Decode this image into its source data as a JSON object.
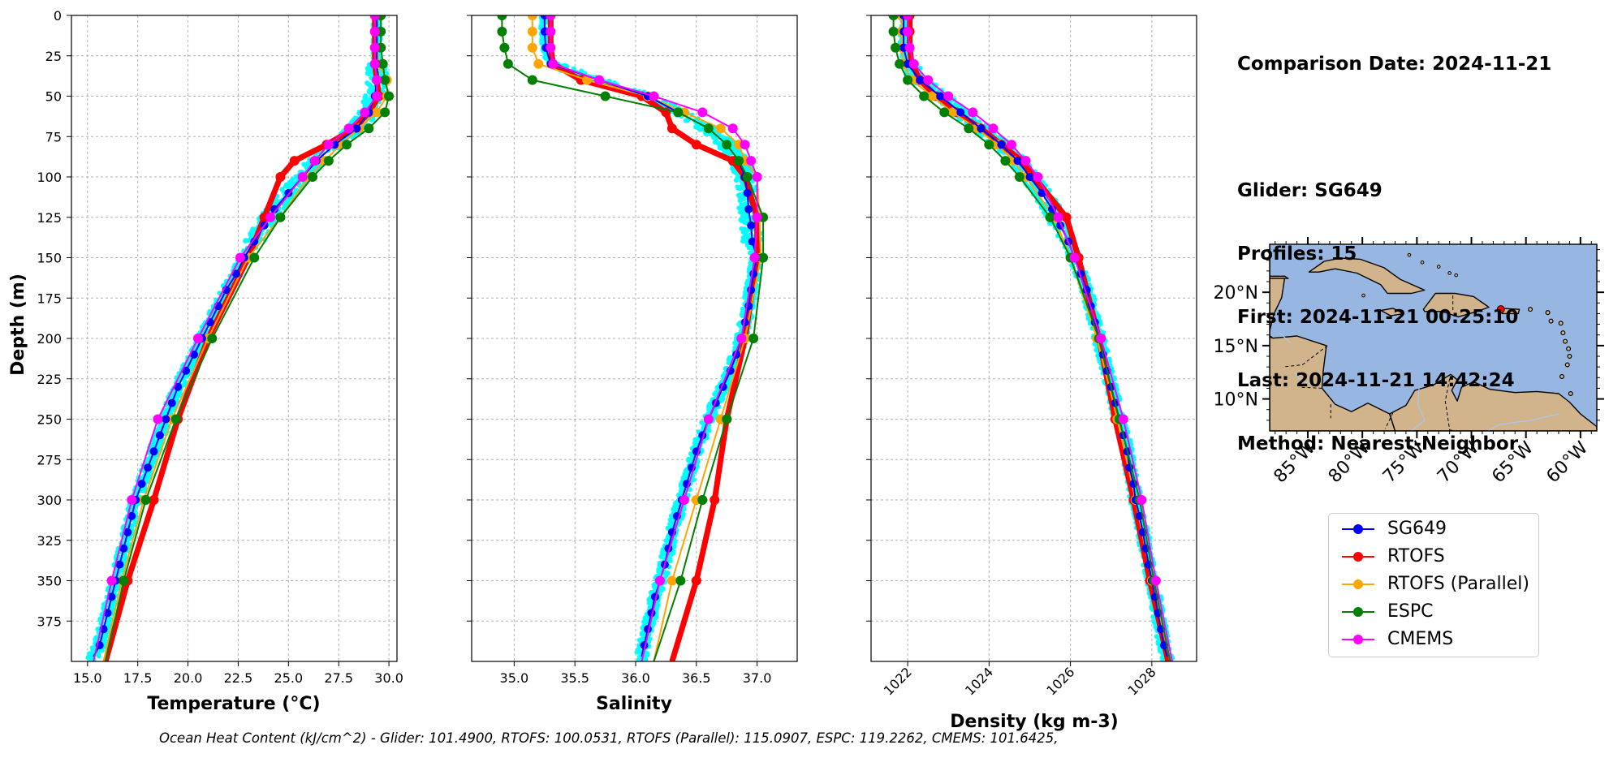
{
  "info": {
    "comparison_date": "Comparison Date: 2024-11-21",
    "glider": "Glider: SG649",
    "profiles": "Profiles: 15",
    "first": "First: 2024-11-21 00:25:10",
    "last": "Last: 2024-11-21 14:42:24",
    "method": "Method: Nearest-Neighbor"
  },
  "footer": "Ocean Heat Content (kJ/cm^2) - Glider: 101.4900,  RTOFS: 100.0531,  RTOFS (Parallel): 115.0907,  ESPC: 119.2262,  CMEMS: 101.6425,",
  "colors": {
    "glider": "#0000ff",
    "rtofs": "#ff0000",
    "rtofs_parallel": "#ffa500",
    "espc": "#008000",
    "cmems": "#ff00ff",
    "glider_raw": "#00ffff",
    "ocean": "#97b6e1",
    "land": "#d2b48c"
  },
  "legend": [
    {
      "label": "SG649",
      "color": "#0000ff"
    },
    {
      "label": "RTOFS",
      "color": "#ff0000"
    },
    {
      "label": "RTOFS (Parallel)",
      "color": "#ffa500"
    },
    {
      "label": "ESPC",
      "color": "#008000"
    },
    {
      "label": "CMEMS",
      "color": "#ff00ff"
    }
  ],
  "chart_data": [
    {
      "type": "line",
      "xlabel": "Temperature (°C)",
      "ylabel": "Depth (m)",
      "xlim": [
        14.2,
        30.4
      ],
      "ylim": [
        400,
        0
      ],
      "xticks": [
        15.0,
        17.5,
        20.0,
        22.5,
        25.0,
        27.5,
        30.0
      ],
      "xtick_labels": [
        "15.0",
        "17.5",
        "20.0",
        "22.5",
        "25.0",
        "27.5",
        "30.0"
      ],
      "yticks": [
        0,
        25,
        50,
        75,
        100,
        125,
        150,
        175,
        200,
        225,
        250,
        275,
        300,
        325,
        350,
        375
      ],
      "grid": true,
      "series": [
        {
          "name": "SG649",
          "depth": [
            0,
            10,
            20,
            30,
            40,
            50,
            60,
            70,
            80,
            90,
            100,
            110,
            120,
            130,
            140,
            150,
            160,
            170,
            180,
            190,
            200,
            210,
            220,
            230,
            240,
            250,
            260,
            270,
            280,
            290,
            300,
            310,
            320,
            330,
            340,
            350,
            360,
            370,
            380,
            390,
            397
          ],
          "values": [
            29.4,
            29.4,
            29.4,
            29.4,
            29.4,
            29.3,
            29.0,
            28.4,
            27.3,
            26.4,
            25.7,
            25.0,
            24.3,
            23.8,
            23.3,
            22.8,
            22.4,
            21.9,
            21.5,
            21.1,
            20.7,
            20.3,
            19.9,
            19.5,
            19.2,
            18.9,
            18.6,
            18.3,
            18.0,
            17.7,
            17.4,
            17.2,
            17.0,
            16.8,
            16.6,
            16.4,
            16.2,
            16.0,
            15.8,
            15.6,
            15.3
          ]
        },
        {
          "name": "RTOFS",
          "depth": [
            0,
            10,
            20,
            30,
            40,
            50,
            60,
            70,
            80,
            90,
            100,
            125,
            150,
            200,
            250,
            300,
            350,
            400
          ],
          "values": [
            29.3,
            29.3,
            29.3,
            29.3,
            29.4,
            29.5,
            29.0,
            28.3,
            26.9,
            25.3,
            24.6,
            23.8,
            23.0,
            21.0,
            19.5,
            18.3,
            17.0,
            15.9
          ]
        },
        {
          "name": "RTOFS (Parallel)",
          "depth": [
            0,
            10,
            20,
            30,
            40,
            50,
            60,
            70,
            80,
            90,
            100,
            125,
            150,
            200,
            250,
            300,
            350,
            400
          ],
          "values": [
            29.4,
            29.4,
            29.4,
            29.5,
            29.9,
            29.9,
            29.4,
            28.5,
            27.6,
            26.8,
            26.0,
            24.6,
            23.0,
            21.0,
            19.2,
            17.8,
            16.7,
            15.8
          ]
        },
        {
          "name": "ESPC",
          "depth": [
            0,
            10,
            20,
            30,
            40,
            50,
            60,
            70,
            80,
            90,
            100,
            125,
            150,
            200,
            250,
            300,
            350,
            400
          ],
          "values": [
            29.6,
            29.6,
            29.6,
            29.7,
            29.8,
            30.0,
            29.8,
            29.0,
            27.9,
            27.0,
            26.2,
            24.6,
            23.3,
            21.2,
            19.4,
            17.9,
            16.8,
            15.9
          ]
        },
        {
          "name": "CMEMS",
          "depth": [
            0,
            10,
            20,
            30,
            40,
            50,
            60,
            70,
            80,
            90,
            100,
            125,
            150,
            200,
            250,
            300,
            350,
            400
          ],
          "values": [
            29.3,
            29.3,
            29.3,
            29.3,
            29.4,
            29.4,
            28.8,
            28.0,
            27.0,
            26.3,
            25.7,
            24.1,
            22.6,
            20.5,
            18.5,
            17.2,
            16.2,
            15.3
          ]
        }
      ]
    },
    {
      "type": "line",
      "xlabel": "Salinity",
      "xlim": [
        34.65,
        37.33
      ],
      "ylim": [
        400,
        0
      ],
      "xticks": [
        35.0,
        35.5,
        36.0,
        36.5,
        37.0
      ],
      "xtick_labels": [
        "35.0",
        "35.5",
        "36.0",
        "36.5",
        "37.0"
      ],
      "grid": true,
      "series": [
        {
          "name": "SG649",
          "depth": [
            0,
            10,
            20,
            30,
            40,
            50,
            60,
            70,
            80,
            90,
            100,
            110,
            120,
            130,
            140,
            150,
            160,
            170,
            180,
            190,
            200,
            210,
            220,
            230,
            240,
            250,
            260,
            270,
            280,
            290,
            300,
            310,
            320,
            330,
            340,
            350,
            360,
            370,
            380,
            390,
            397
          ],
          "values": [
            35.25,
            35.25,
            35.26,
            35.3,
            35.7,
            36.1,
            36.35,
            36.6,
            36.75,
            36.85,
            36.9,
            36.92,
            36.93,
            36.95,
            36.96,
            37.0,
            36.97,
            36.95,
            36.93,
            36.9,
            36.87,
            36.83,
            36.78,
            36.72,
            36.66,
            36.6,
            36.55,
            36.5,
            36.46,
            36.42,
            36.38,
            36.34,
            36.3,
            36.27,
            36.24,
            36.2,
            36.16,
            36.13,
            36.1,
            36.07,
            36.05
          ]
        },
        {
          "name": "RTOFS",
          "depth": [
            0,
            10,
            20,
            30,
            40,
            50,
            60,
            70,
            80,
            90,
            100,
            125,
            150,
            200,
            250,
            300,
            350,
            400
          ],
          "values": [
            35.3,
            35.3,
            35.3,
            35.32,
            35.55,
            36.05,
            36.25,
            36.3,
            36.5,
            36.8,
            36.9,
            37.0,
            37.0,
            36.9,
            36.75,
            36.65,
            36.5,
            36.3
          ]
        },
        {
          "name": "RTOFS (Parallel)",
          "depth": [
            0,
            10,
            20,
            30,
            40,
            50,
            60,
            70,
            80,
            90,
            100,
            125,
            150,
            200,
            250,
            300,
            350,
            400
          ],
          "values": [
            35.15,
            35.15,
            35.15,
            35.2,
            35.6,
            36.1,
            36.4,
            36.7,
            36.85,
            36.9,
            37.0,
            37.02,
            37.03,
            36.9,
            36.7,
            36.5,
            36.3,
            36.15
          ]
        },
        {
          "name": "ESPC",
          "depth": [
            0,
            10,
            20,
            30,
            40,
            50,
            60,
            70,
            80,
            90,
            100,
            125,
            150,
            200,
            250,
            300,
            350,
            400
          ],
          "values": [
            34.9,
            34.9,
            34.92,
            34.95,
            35.15,
            35.75,
            36.35,
            36.6,
            36.75,
            36.85,
            36.92,
            37.05,
            37.05,
            36.97,
            36.75,
            36.55,
            36.37,
            36.15
          ]
        },
        {
          "name": "CMEMS",
          "depth": [
            0,
            10,
            20,
            30,
            40,
            50,
            60,
            70,
            80,
            90,
            100,
            125,
            150,
            200,
            250,
            300,
            350,
            400
          ],
          "values": [
            35.3,
            35.3,
            35.3,
            35.32,
            35.7,
            36.15,
            36.55,
            36.8,
            36.9,
            36.95,
            37.0,
            37.0,
            36.98,
            36.87,
            36.6,
            36.4,
            36.2,
            36.05
          ]
        }
      ]
    },
    {
      "type": "line",
      "xlabel": "Density (kg m-3)",
      "xlim": [
        1021.1,
        1029.1
      ],
      "ylim": [
        400,
        0
      ],
      "xticks": [
        1022,
        1024,
        1026,
        1028
      ],
      "xtick_labels": [
        "1022",
        "1024",
        "1026",
        "1028"
      ],
      "grid": true,
      "series": [
        {
          "name": "SG649",
          "depth": [
            0,
            10,
            20,
            30,
            40,
            50,
            60,
            70,
            80,
            90,
            100,
            110,
            120,
            130,
            140,
            150,
            160,
            170,
            180,
            190,
            200,
            210,
            220,
            230,
            240,
            250,
            260,
            270,
            280,
            290,
            300,
            310,
            320,
            330,
            340,
            350,
            360,
            370,
            380,
            390,
            397
          ],
          "values": [
            1021.9,
            1021.9,
            1021.9,
            1022.0,
            1022.3,
            1022.8,
            1023.3,
            1023.8,
            1024.3,
            1024.7,
            1025.0,
            1025.3,
            1025.55,
            1025.75,
            1025.95,
            1026.1,
            1026.25,
            1026.4,
            1026.5,
            1026.6,
            1026.7,
            1026.8,
            1026.9,
            1027.0,
            1027.1,
            1027.2,
            1027.3,
            1027.4,
            1027.45,
            1027.55,
            1027.6,
            1027.7,
            1027.78,
            1027.85,
            1027.92,
            1028.0,
            1028.08,
            1028.15,
            1028.22,
            1028.3,
            1028.38
          ]
        },
        {
          "name": "RTOFS",
          "depth": [
            0,
            10,
            20,
            30,
            40,
            50,
            60,
            70,
            80,
            90,
            100,
            125,
            150,
            200,
            250,
            300,
            350,
            400
          ],
          "values": [
            1022.05,
            1022.05,
            1022.05,
            1022.1,
            1022.3,
            1022.7,
            1023.2,
            1023.8,
            1024.3,
            1024.8,
            1025.1,
            1025.9,
            1026.2,
            1026.7,
            1027.1,
            1027.55,
            1027.95,
            1028.4
          ]
        },
        {
          "name": "RTOFS (Parallel)",
          "depth": [
            0,
            10,
            20,
            30,
            40,
            50,
            60,
            70,
            80,
            90,
            100,
            125,
            150,
            200,
            250,
            300,
            350,
            400
          ],
          "values": [
            1021.85,
            1021.85,
            1021.85,
            1021.9,
            1022.1,
            1022.6,
            1023.1,
            1023.7,
            1024.2,
            1024.6,
            1024.9,
            1025.6,
            1026.0,
            1026.65,
            1027.15,
            1027.6,
            1028.0,
            1028.45
          ]
        },
        {
          "name": "ESPC",
          "depth": [
            0,
            10,
            20,
            30,
            40,
            50,
            60,
            70,
            80,
            90,
            100,
            125,
            150,
            200,
            250,
            300,
            350,
            400
          ],
          "values": [
            1021.65,
            1021.65,
            1021.7,
            1021.8,
            1022.0,
            1022.4,
            1022.9,
            1023.5,
            1024.0,
            1024.4,
            1024.75,
            1025.5,
            1026.0,
            1026.7,
            1027.2,
            1027.7,
            1028.05,
            1028.45
          ]
        },
        {
          "name": "CMEMS",
          "depth": [
            0,
            10,
            20,
            30,
            40,
            50,
            60,
            70,
            80,
            90,
            100,
            125,
            150,
            200,
            250,
            300,
            350,
            400
          ],
          "values": [
            1022.0,
            1022.0,
            1022.05,
            1022.15,
            1022.5,
            1023.0,
            1023.6,
            1024.1,
            1024.55,
            1024.9,
            1025.2,
            1025.7,
            1026.1,
            1026.75,
            1027.3,
            1027.75,
            1028.1,
            1028.5
          ]
        }
      ]
    },
    {
      "type": "map",
      "lon_range": [
        -88.5,
        -58.5
      ],
      "lat_range": [
        7.0,
        24.5
      ],
      "lat_tick_labels": [
        "20°N",
        "15°N",
        "10°N"
      ],
      "lat_ticks": [
        20,
        15,
        10
      ],
      "lon_tick_labels": [
        "85°W",
        "80°W",
        "75°W",
        "70°W",
        "65°W",
        "60°W"
      ],
      "lon_ticks": [
        -85,
        -80,
        -75,
        -70,
        -65,
        -60
      ],
      "glider_location": {
        "lon": -67.3,
        "lat": 18.4
      }
    }
  ]
}
